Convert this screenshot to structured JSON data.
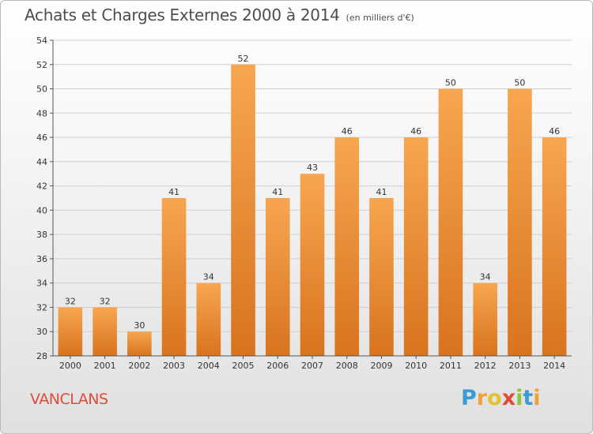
{
  "header": {
    "title": "Achats et Charges Externes 2000 à 2014",
    "unit_note": "(en milliers d'€)"
  },
  "footer": {
    "commune": "VANCLANS",
    "brand": "Proxiti",
    "brand_letters": [
      {
        "ch": "P",
        "color": "#3a9bd5"
      },
      {
        "ch": "r",
        "color": "#f0a23a"
      },
      {
        "ch": "o",
        "color": "#e8c02a"
      },
      {
        "ch": "x",
        "color": "#e04a3a"
      },
      {
        "ch": "i",
        "color": "#8cc63f"
      },
      {
        "ch": "t",
        "color": "#3a9bd5"
      },
      {
        "ch": "i",
        "color": "#f0a23a"
      }
    ]
  },
  "colors": {
    "bar_light": "#f7a650",
    "bar_dark": "#d9731e",
    "grid": "#cfcfcf",
    "axis": "#555555",
    "text": "#333333"
  },
  "chart_data": {
    "type": "bar",
    "title": "Achats et Charges Externes 2000 à 2014",
    "categories": [
      "2000",
      "2001",
      "2002",
      "2003",
      "2004",
      "2005",
      "2006",
      "2007",
      "2008",
      "2009",
      "2010",
      "2011",
      "2012",
      "2013",
      "2014"
    ],
    "values": [
      32,
      32,
      30,
      41,
      34,
      52,
      41,
      43,
      46,
      41,
      46,
      50,
      34,
      50,
      46
    ],
    "ylim": [
      28,
      54
    ],
    "yticks": [
      28,
      30,
      32,
      34,
      36,
      38,
      40,
      42,
      44,
      46,
      48,
      50,
      52,
      54
    ],
    "grid": true,
    "data_labels": true
  }
}
